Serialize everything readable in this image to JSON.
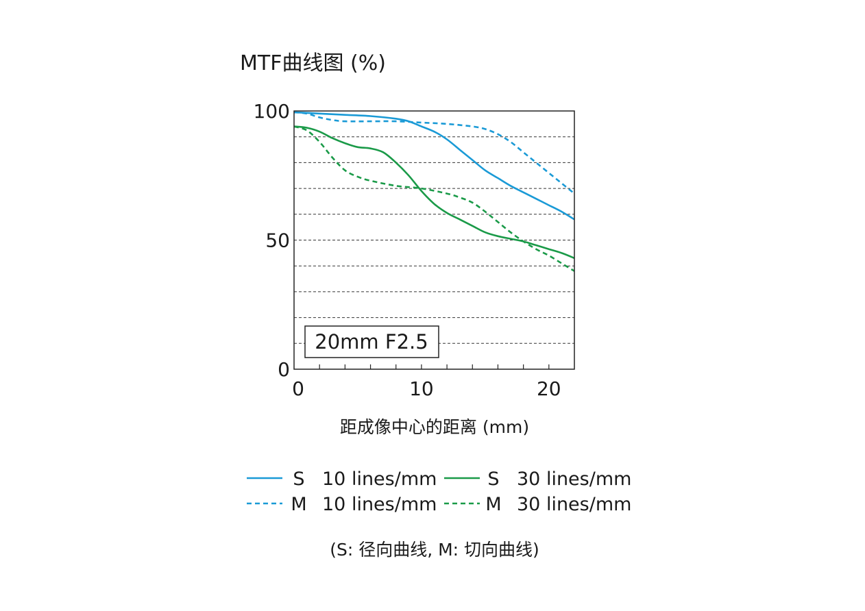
{
  "chart_data": {
    "type": "line",
    "title": "MTF曲线图 (%)",
    "xlabel": "距成像中心的距离 (mm)",
    "ylabel": "",
    "xlim": [
      0,
      22
    ],
    "ylim": [
      0,
      100
    ],
    "x_ticks": [
      "0",
      "10",
      "20"
    ],
    "y_ticks": [
      "0",
      "50",
      "100"
    ],
    "grid": "horizontal dashed lines every 10%",
    "annotation": "20mm F2.5",
    "legend_position": "bottom",
    "footnote": "(S: 径向曲线, M: 切向曲线)",
    "series": [
      {
        "name": "S 10 lines/mm",
        "legend_type": "S",
        "legend_freq": "10 lines/mm",
        "color": "#1a9ad6",
        "dash": "solid",
        "x": [
          0,
          2,
          4,
          6,
          8,
          9,
          10,
          11,
          12,
          13,
          14,
          15,
          16,
          17,
          18,
          19,
          20,
          21,
          22
        ],
        "y": [
          99.5,
          99,
          98.5,
          98,
          97,
          96,
          94,
          92,
          89,
          85,
          81,
          77,
          74,
          71,
          68.5,
          66,
          63.5,
          61,
          58
        ]
      },
      {
        "name": "M 10 lines/mm",
        "legend_type": "M",
        "legend_freq": "10 lines/mm",
        "color": "#1a9ad6",
        "dash": "dashed",
        "x": [
          0,
          1,
          2,
          3,
          4,
          6,
          8,
          10,
          12,
          14,
          15,
          16,
          17,
          18,
          19,
          20,
          21,
          22
        ],
        "y": [
          99.5,
          99,
          97.5,
          96.5,
          96,
          96,
          96,
          95.5,
          95,
          94,
          93,
          91,
          88,
          84,
          80,
          76,
          72,
          68
        ]
      },
      {
        "name": "S 30 lines/mm",
        "legend_type": "S",
        "legend_freq": "30 lines/mm",
        "color": "#1a9a48",
        "dash": "solid",
        "x": [
          0,
          1,
          2,
          3,
          4,
          5,
          6,
          7,
          8,
          9,
          10,
          11,
          12,
          13,
          14,
          15,
          16,
          17,
          18,
          19,
          20,
          21,
          22
        ],
        "y": [
          94,
          93.5,
          92,
          89.5,
          87.5,
          86,
          85.5,
          84,
          80,
          75,
          69,
          64,
          60.5,
          58,
          55.5,
          53,
          51.5,
          50.5,
          49.5,
          48,
          46.5,
          45,
          43
        ]
      },
      {
        "name": "M 30 lines/mm",
        "legend_type": "M",
        "legend_freq": "30 lines/mm",
        "color": "#1a9a48",
        "dash": "dashed",
        "x": [
          0,
          1,
          2,
          3,
          4,
          5,
          6,
          8,
          10,
          12,
          13,
          14,
          15,
          16,
          17,
          18,
          19,
          20,
          21,
          22
        ],
        "y": [
          94,
          92.5,
          88,
          82,
          77,
          74.5,
          73,
          71,
          70,
          68,
          66.5,
          64.5,
          61,
          57,
          53,
          49.5,
          46.5,
          44,
          41,
          38
        ]
      }
    ]
  }
}
